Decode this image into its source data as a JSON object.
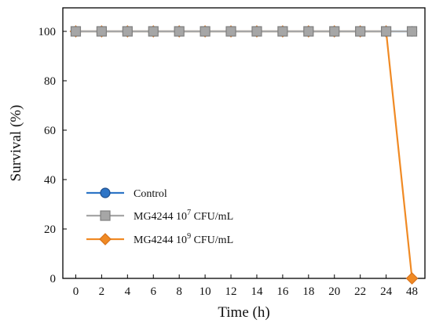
{
  "chart_data": {
    "type": "line",
    "xlabel": "Time (h)",
    "ylabel": "Survival (%)",
    "categories": [
      "0",
      "2",
      "4",
      "6",
      "8",
      "10",
      "12",
      "14",
      "16",
      "18",
      "20",
      "22",
      "24",
      "48"
    ],
    "ylim": [
      0,
      100
    ],
    "yticks": [
      0,
      20,
      40,
      60,
      80,
      100
    ],
    "grid": false,
    "legend_position": "bottom-left",
    "series": [
      {
        "name": "Control",
        "legend_parts": [
          "Control"
        ],
        "color": "#2E75C6",
        "edge_color": "#1F4E8C",
        "marker": "circle",
        "values": [
          100,
          100,
          100,
          100,
          100,
          100,
          100,
          100,
          100,
          100,
          100,
          100,
          100,
          100
        ]
      },
      {
        "name": "MG4244 10⁷ CFU/mL",
        "legend_parts": [
          "MG4244 10",
          "7",
          " CFU/mL"
        ],
        "color": "#A6A6A6",
        "edge_color": "#7F7F7F",
        "marker": "square",
        "values": [
          100,
          100,
          100,
          100,
          100,
          100,
          100,
          100,
          100,
          100,
          100,
          100,
          100,
          100
        ]
      },
      {
        "name": "MG4244 10⁹ CFU/mL",
        "legend_parts": [
          "MG4244 10",
          "9",
          " CFU/mL"
        ],
        "color": "#F08A24",
        "edge_color": "#D9731B",
        "marker": "diamond",
        "values": [
          100,
          100,
          100,
          100,
          100,
          100,
          100,
          100,
          100,
          100,
          100,
          100,
          100,
          0
        ]
      }
    ]
  }
}
